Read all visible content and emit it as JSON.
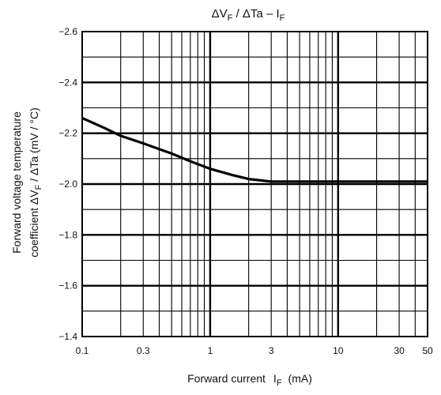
{
  "chart_data": {
    "type": "line",
    "title": {
      "delta_v": "ΔV",
      "v_sub": "F",
      "rest": " / ΔTa – I",
      "i_sub": "F"
    },
    "xlabel": {
      "main": "Forward current",
      "symbol": "I",
      "symbol_sub": "F",
      "unit": "(mA)"
    },
    "ylabel": {
      "line1": "Forward voltage temperature",
      "line2_prefix": "coefficient   ΔV",
      "line2_sub": "F",
      "line2_suffix": " / ΔTa   (mV / °C)"
    },
    "x_scale": "log",
    "xlim": [
      0.1,
      50
    ],
    "y_direction": "inverted",
    "ylim": [
      -2.6,
      -1.4
    ],
    "x_tick_labels": [
      {
        "value": 0.1,
        "label": "0.1"
      },
      {
        "value": 0.3,
        "label": "0.3"
      },
      {
        "value": 1,
        "label": "1"
      },
      {
        "value": 3,
        "label": "3"
      },
      {
        "value": 10,
        "label": "10"
      },
      {
        "value": 30,
        "label": "30"
      },
      {
        "value": 50,
        "label": "50"
      }
    ],
    "y_tick_labels": [
      {
        "value": -2.6,
        "label": "−2.6"
      },
      {
        "value": -2.4,
        "label": "−2.4"
      },
      {
        "value": -2.2,
        "label": "−2.2"
      },
      {
        "value": -2.0,
        "label": "−2.0"
      },
      {
        "value": -1.8,
        "label": "−1.8"
      },
      {
        "value": -1.6,
        "label": "−1.6"
      },
      {
        "value": -1.4,
        "label": "−1.4"
      }
    ],
    "grid": true,
    "x_minor_grid": [
      0.1,
      0.2,
      0.3,
      0.4,
      0.5,
      0.6,
      0.7,
      0.8,
      0.9,
      1,
      2,
      3,
      4,
      5,
      6,
      7,
      8,
      9,
      10,
      20,
      30,
      40,
      50
    ],
    "x_major_grid": [
      1,
      10
    ],
    "y_minor_grid": [
      -2.5,
      -2.3,
      -2.1,
      -1.9,
      -1.7,
      -1.5
    ],
    "y_major_grid": [
      -2.4,
      -2.2,
      -2.0,
      -1.8,
      -1.6
    ],
    "series": [
      {
        "color": "#000000",
        "x": [
          0.1,
          0.15,
          0.2,
          0.3,
          0.5,
          0.7,
          1,
          1.5,
          2,
          3,
          5,
          10,
          20,
          50
        ],
        "y": [
          -2.26,
          -2.22,
          -2.19,
          -2.16,
          -2.12,
          -2.09,
          -2.06,
          -2.035,
          -2.02,
          -2.01,
          -2.01,
          -2.01,
          -2.01,
          -2.01
        ]
      }
    ]
  }
}
